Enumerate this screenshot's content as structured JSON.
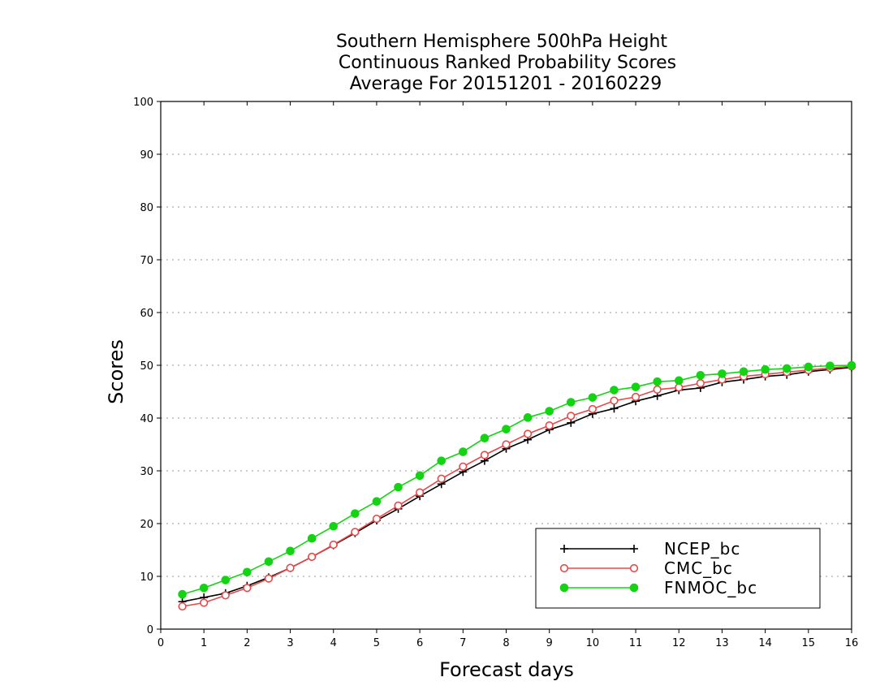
{
  "chart_data": {
    "type": "line",
    "title_lines": [
      "Southern Hemisphere 500hPa Height",
      "Continuous Ranked Probability Scores",
      "Average For 20151201 - 20160229"
    ],
    "xlabel": "Forecast days",
    "ylabel": "Scores",
    "xlim": [
      0,
      16
    ],
    "ylim": [
      0,
      100
    ],
    "x_ticks": [
      0,
      1,
      2,
      3,
      4,
      5,
      6,
      7,
      8,
      9,
      10,
      11,
      12,
      13,
      14,
      15,
      16
    ],
    "y_ticks": [
      0,
      10,
      20,
      30,
      40,
      50,
      60,
      70,
      80,
      90,
      100
    ],
    "grid": "horizontal dotted",
    "legend_position": "bottom-right",
    "x": [
      0.5,
      1,
      1.5,
      2,
      2.5,
      3,
      3.5,
      4,
      4.5,
      5,
      5.5,
      6,
      6.5,
      7,
      7.5,
      8,
      8.5,
      9,
      9.5,
      10,
      10.5,
      11,
      11.5,
      12,
      12.5,
      13,
      13.5,
      14,
      14.5,
      15,
      15.5,
      16
    ],
    "series": [
      {
        "name": "NCEP_bc",
        "color": "#000000",
        "marker": "plus",
        "values": [
          5.2,
          6.0,
          6.8,
          8.2,
          9.8,
          11.6,
          13.7,
          15.9,
          18.2,
          20.6,
          22.8,
          25.2,
          27.5,
          29.8,
          31.9,
          34.2,
          35.9,
          37.8,
          39.1,
          40.8,
          41.8,
          43.2,
          44.2,
          45.3,
          45.7,
          46.8,
          47.3,
          47.9,
          48.2,
          48.8,
          49.2,
          49.6
        ]
      },
      {
        "name": "CMC_bc",
        "color": "#e8484a",
        "marker": "open-circle",
        "values": [
          4.3,
          5.0,
          6.4,
          7.8,
          9.6,
          11.6,
          13.7,
          16.0,
          18.4,
          20.9,
          23.4,
          25.9,
          28.5,
          30.8,
          33.0,
          35.0,
          37.0,
          38.6,
          40.4,
          41.7,
          43.3,
          44.0,
          45.4,
          45.8,
          46.6,
          47.3,
          47.9,
          48.3,
          48.7,
          49.1,
          49.5,
          49.8
        ]
      },
      {
        "name": "FNMOC_bc",
        "color": "#13d413",
        "marker": "filled-circle",
        "values": [
          6.6,
          7.8,
          9.3,
          10.8,
          12.8,
          14.8,
          17.2,
          19.5,
          21.9,
          24.2,
          26.9,
          29.1,
          31.9,
          33.6,
          36.2,
          37.9,
          40.1,
          41.3,
          43.0,
          43.9,
          45.3,
          45.9,
          46.9,
          47.1,
          48.1,
          48.4,
          48.8,
          49.2,
          49.4,
          49.7,
          49.9,
          50.0
        ]
      }
    ]
  }
}
